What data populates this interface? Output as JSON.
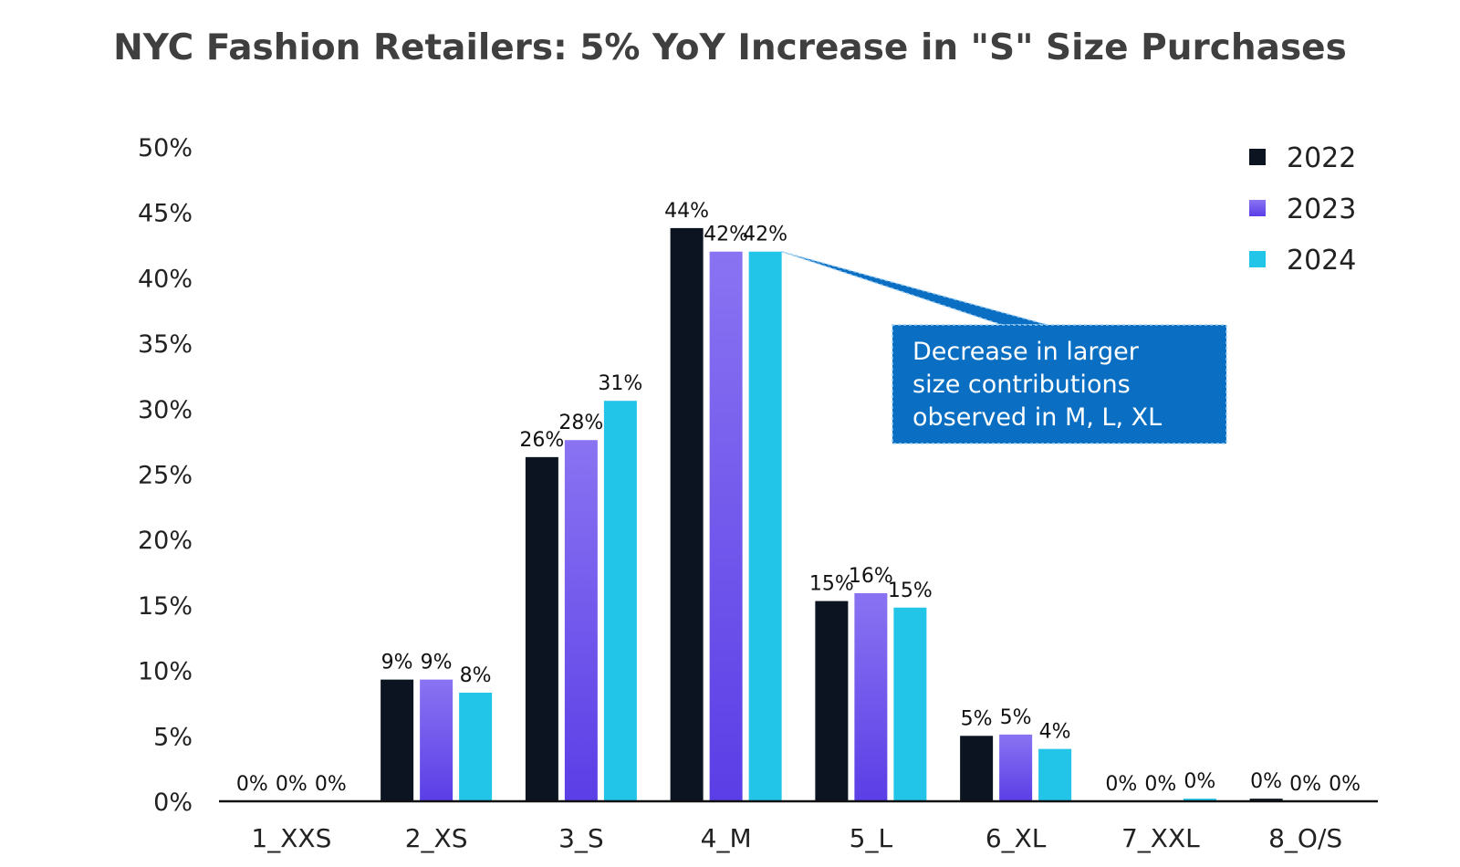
{
  "chart_data": {
    "type": "bar",
    "title": "NYC Fashion Retailers: 5% YoY Increase in \"S\" Size Purchases",
    "categories": [
      "1_XXS",
      "2_XS",
      "3_S",
      "4_M",
      "5_L",
      "6_XL",
      "7_XXL",
      "8_O/S"
    ],
    "series": [
      {
        "name": "2022",
        "color": "#0b1420",
        "values": [
          0,
          9.3,
          26.3,
          43.8,
          15.3,
          5.0,
          0,
          0.2
        ],
        "labels": [
          "0%",
          "9%",
          "26%",
          "44%",
          "15%",
          "5%",
          "0%",
          "0%"
        ]
      },
      {
        "name": "2023",
        "color": "#6a4ff0",
        "values": [
          0,
          9.3,
          27.6,
          42.0,
          15.9,
          5.1,
          0,
          0
        ],
        "labels": [
          "0%",
          "9%",
          "28%",
          "42%",
          "16%",
          "5%",
          "0%",
          "0%"
        ]
      },
      {
        "name": "2024",
        "color": "#22c4e8",
        "values": [
          0,
          8.3,
          30.6,
          42.0,
          14.8,
          4.0,
          0.2,
          0
        ],
        "labels": [
          "0%",
          "8%",
          "31%",
          "42%",
          "15%",
          "4%",
          "0%",
          "0%"
        ]
      }
    ],
    "ylim": [
      0,
      50
    ],
    "yticks": [
      "0%",
      "5%",
      "10%",
      "15%",
      "20%",
      "25%",
      "30%",
      "35%",
      "40%",
      "45%",
      "50%"
    ],
    "grid": false,
    "legend_position": "top-right",
    "annotation": {
      "lines": [
        "Decrease in larger",
        "size contributions",
        "observed in M, L, XL"
      ],
      "points_to": {
        "category": "4_M",
        "series": "2024"
      },
      "color": "#0a6fc2"
    }
  }
}
